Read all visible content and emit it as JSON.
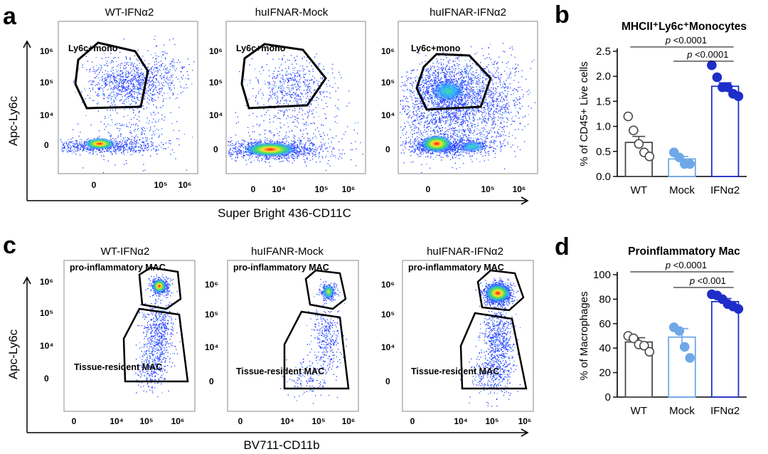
{
  "panels": {
    "a": {
      "label": "a",
      "flow_titles": [
        "WT-IFNα2",
        "huIFNAR-Mock",
        "huIFNAR-IFNα2"
      ],
      "gate_label": "Ly6c+mono",
      "y_axis_label": "Apc-Ly6c",
      "x_axis_label": "Super Bright 436-CD11C",
      "y_ticks": [
        "10⁶",
        "10⁵",
        "10⁴",
        "0"
      ],
      "x_ticks": [
        "0",
        "10⁴",
        "10⁵",
        "10⁶"
      ]
    },
    "c": {
      "label": "c",
      "flow_titles": [
        "WT-IFNα2",
        "huIFANR-Mock",
        "huIFNAR-IFNα2"
      ],
      "gate_top_label": "pro-inflammatory MAC",
      "gate_bottom_label": "Tissue-resident MAC",
      "y_axis_label": "Apc-Ly6c",
      "x_axis_label": "BV711-CD11b",
      "y_ticks": [
        "10⁶",
        "10⁵",
        "10⁴",
        "0"
      ],
      "x_ticks": [
        "0",
        "10⁴",
        "10⁵",
        "10⁶"
      ]
    },
    "b": {
      "label": "b"
    },
    "d": {
      "label": "d"
    }
  },
  "chart_data": [
    {
      "panel": "b",
      "type": "bar",
      "title": "MHCII⁺Ly6c⁺Monocytes",
      "ylabel": "% of CD45+ Live cells",
      "categories": [
        "WT",
        "Mock",
        "IFNα2"
      ],
      "means": [
        0.68,
        0.35,
        1.8
      ],
      "sem": [
        0.12,
        0.05,
        0.07
      ],
      "points": [
        [
          1.2,
          0.92,
          0.65,
          0.48,
          0.4
        ],
        [
          0.48,
          0.38,
          0.25,
          0.25
        ],
        [
          2.22,
          1.98,
          1.78,
          1.78,
          1.65,
          1.6
        ]
      ],
      "ylim": [
        0,
        2.5
      ],
      "yticks": [
        "0.0",
        "0.5",
        "1.0",
        "1.5",
        "2.0",
        "2.5"
      ],
      "colors": [
        "#4a4a4a",
        "#6fa8e8",
        "#1e2ec8"
      ],
      "significance": [
        {
          "from": "WT",
          "to": "IFNα2",
          "p_label": "p",
          "p_value": "<0.0001"
        },
        {
          "from": "Mock",
          "to": "IFNα2",
          "p_label": "p",
          "p_value": "<0.0001"
        }
      ]
    },
    {
      "panel": "d",
      "type": "bar",
      "title": "Proinflammatory Mac",
      "ylabel": "% of Macrophages",
      "categories": [
        "WT",
        "Mock",
        "IFNα2"
      ],
      "means": [
        45,
        49,
        78
      ],
      "sem": [
        3.5,
        7,
        2.5
      ],
      "points": [
        [
          50,
          48,
          43,
          42,
          37
        ],
        [
          57,
          54,
          41,
          32
        ],
        [
          84,
          83,
          80,
          76,
          74,
          72
        ]
      ],
      "ylim": [
        0,
        100
      ],
      "yticks": [
        "0",
        "20",
        "40",
        "60",
        "80",
        "100"
      ],
      "colors": [
        "#4a4a4a",
        "#6fa8e8",
        "#1e2ec8"
      ],
      "significance": [
        {
          "from": "WT",
          "to": "IFNα2",
          "p_label": "p",
          "p_value": "<0.0001"
        },
        {
          "from": "Mock",
          "to": "IFNα2",
          "p_label": "p",
          "p_value": "<0.001"
        }
      ]
    }
  ]
}
